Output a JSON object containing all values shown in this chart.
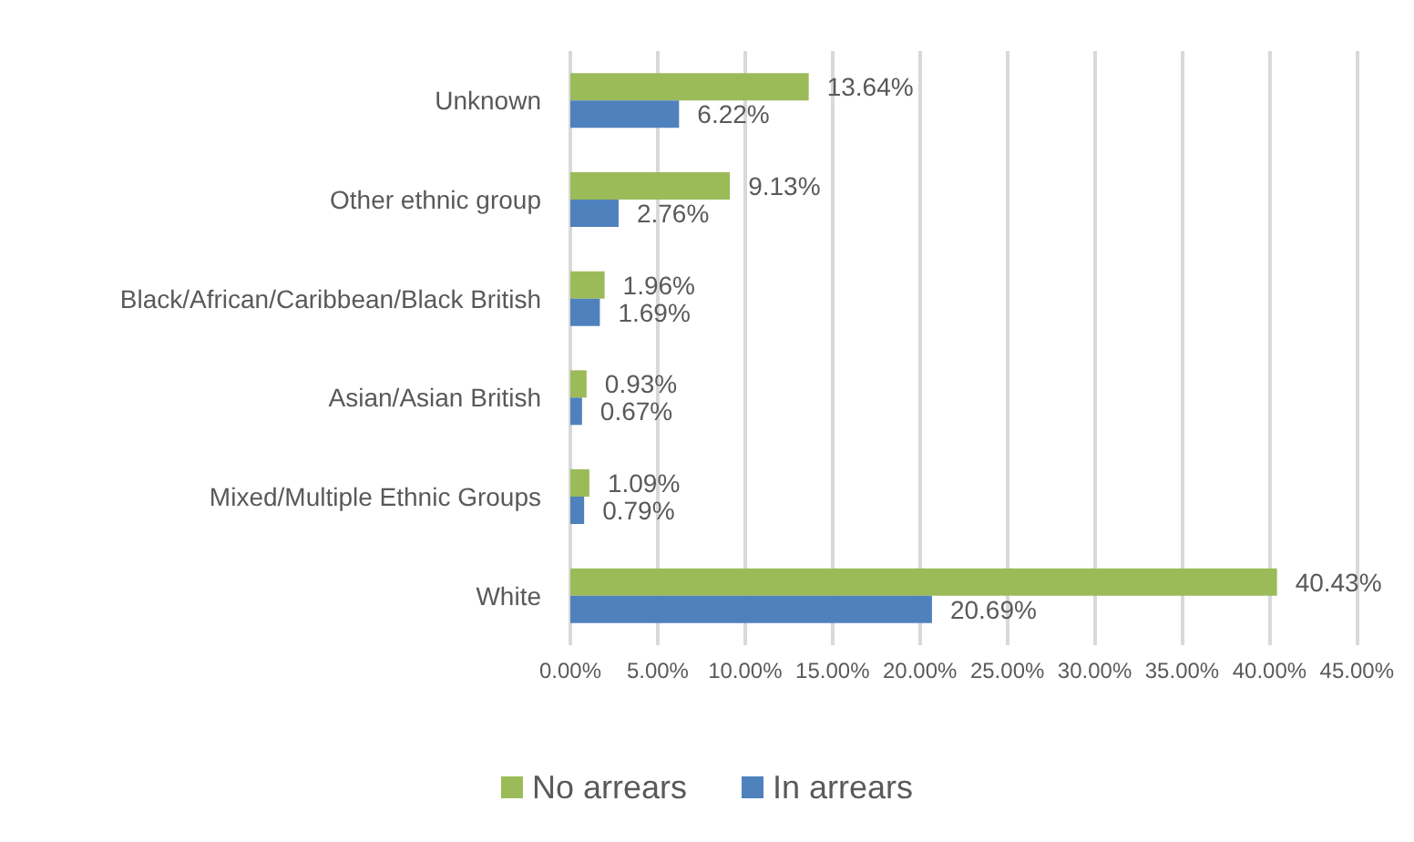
{
  "chart_data": {
    "type": "bar",
    "orientation": "horizontal",
    "categories": [
      "Unknown",
      "Other ethnic group",
      "Black/African/Caribbean/Black British",
      "Asian/Asian British",
      "Mixed/Multiple Ethnic Groups",
      "White"
    ],
    "series": [
      {
        "name": "No arrears",
        "color": "#9bbb59",
        "values": [
          13.64,
          9.13,
          1.96,
          0.93,
          1.09,
          40.43
        ],
        "value_labels": [
          "13.64%",
          "9.13%",
          "1.96%",
          "0.93%",
          "1.09%",
          "40.43%"
        ]
      },
      {
        "name": "In arrears",
        "color": "#4f81bd",
        "values": [
          6.22,
          2.76,
          1.69,
          0.67,
          0.79,
          20.69
        ],
        "value_labels": [
          "6.22%",
          "2.76%",
          "1.69%",
          "0.67%",
          "0.79%",
          "20.69%"
        ]
      }
    ],
    "xlim": [
      0,
      45
    ],
    "xticks": [
      {
        "value": 0,
        "label": "0.00%"
      },
      {
        "value": 5,
        "label": "5.00%"
      },
      {
        "value": 10,
        "label": "10.00%"
      },
      {
        "value": 15,
        "label": "15.00%"
      },
      {
        "value": 20,
        "label": "20.00%"
      },
      {
        "value": 25,
        "label": "25.00%"
      },
      {
        "value": 30,
        "label": "30.00%"
      },
      {
        "value": 35,
        "label": "35.00%"
      },
      {
        "value": 40,
        "label": "40.00%"
      },
      {
        "value": 45,
        "label": "45.00%"
      }
    ],
    "grid": "x",
    "legend": "bottom"
  }
}
